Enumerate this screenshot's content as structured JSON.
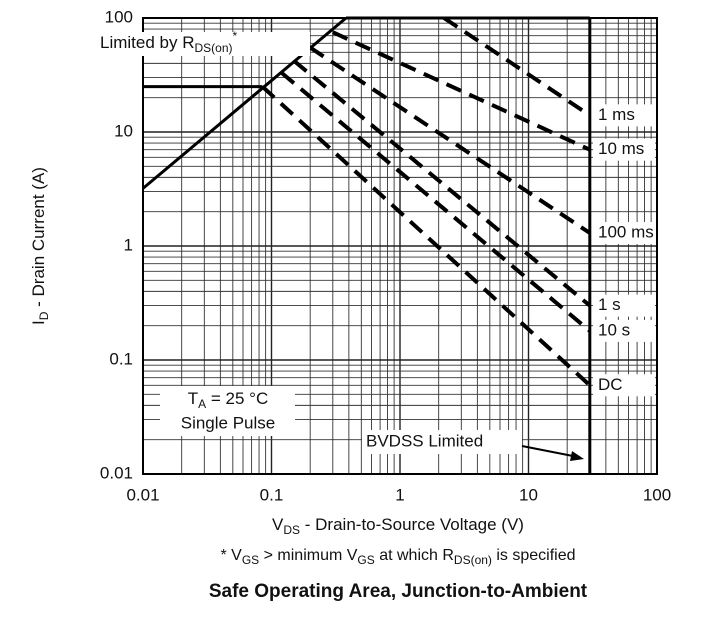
{
  "chart_data": {
    "type": "line",
    "title": "Safe Operating Area, Junction-to-Ambient",
    "xlabel": [
      "V",
      "DS",
      " - Drain-to-Source Voltage (V)"
    ],
    "ylabel": [
      "I",
      "D",
      " - Drain Current (A)"
    ],
    "footnote": [
      "* V",
      "GS",
      " > minimum V",
      "GS",
      " at which R",
      "DS(on)",
      " is specified"
    ],
    "annotations": {
      "rds": [
        "Limited by R",
        "DS(on)",
        "*"
      ],
      "ta": [
        "T",
        "A",
        " = 25 °C"
      ],
      "pulse": "Single Pulse",
      "bvdss": "BVDSS Limited"
    },
    "xscale": "log",
    "yscale": "log",
    "grid": true,
    "minor_grid": true,
    "xlim": [
      0.01,
      100
    ],
    "ylim": [
      0.01,
      100
    ],
    "xticks": [
      0.01,
      0.1,
      1,
      10,
      100
    ],
    "yticks": [
      0.01,
      0.1,
      1,
      10,
      100
    ],
    "limits": [
      {
        "x": [
          0.01,
          0.38
        ],
        "values": [
          3.2,
          100
        ]
      },
      {
        "x": [
          0.01,
          0.085
        ],
        "values": [
          25,
          25
        ]
      },
      {
        "x": [
          0.38,
          30
        ],
        "values": [
          100,
          100
        ]
      },
      {
        "x": [
          30,
          30
        ],
        "values": [
          0.01,
          100
        ]
      }
    ],
    "series": [
      {
        "name": "1 ms",
        "color": "#000000",
        "x": [
          2.2,
          30
        ],
        "values": [
          100,
          14
        ]
      },
      {
        "name": "10 ms",
        "color": "#000000",
        "x": [
          0.3,
          30
        ],
        "values": [
          75,
          7
        ]
      },
      {
        "name": "100 ms",
        "color": "#000000",
        "x": [
          0.2,
          30
        ],
        "values": [
          55,
          1.3
        ]
      },
      {
        "name": "1 s",
        "color": "#000000",
        "x": [
          0.15,
          30
        ],
        "values": [
          42,
          0.3
        ]
      },
      {
        "name": "10 s",
        "color": "#000000",
        "x": [
          0.12,
          30
        ],
        "values": [
          33,
          0.18
        ]
      },
      {
        "name": "DC",
        "color": "#000000",
        "x": [
          0.085,
          30
        ],
        "values": [
          25,
          0.06
        ]
      }
    ]
  }
}
